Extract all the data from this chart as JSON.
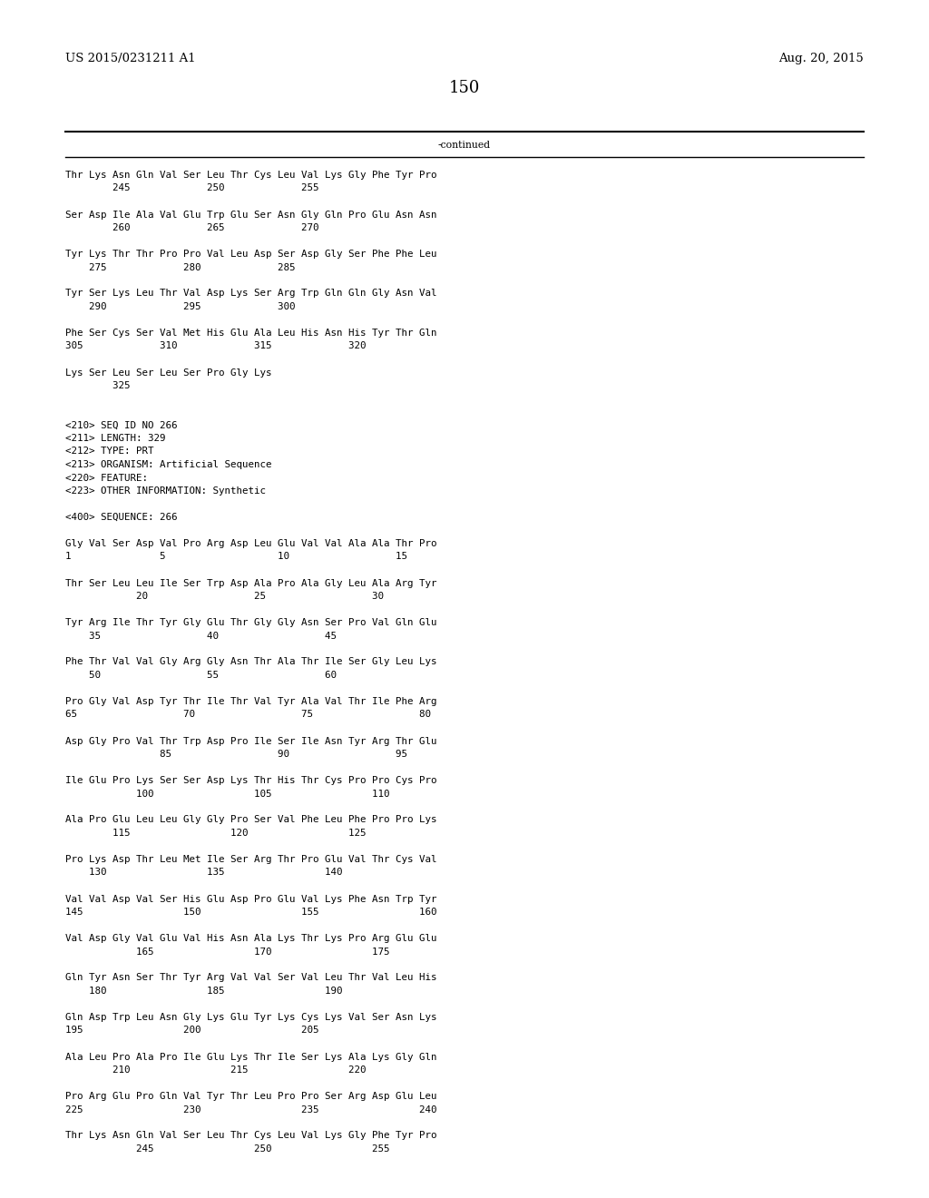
{
  "patent_number": "US 2015/0231211 A1",
  "date": "Aug. 20, 2015",
  "page_number": "150",
  "continued_label": "-continued",
  "background_color": "#ffffff",
  "text_color": "#000000",
  "font_size": 7.8,
  "header_font_size": 9.5,
  "page_num_font_size": 13,
  "lines": [
    "Thr Lys Asn Gln Val Ser Leu Thr Cys Leu Val Lys Gly Phe Tyr Pro",
    "        245             250             255",
    "",
    "Ser Asp Ile Ala Val Glu Trp Glu Ser Asn Gly Gln Pro Glu Asn Asn",
    "        260             265             270",
    "",
    "Tyr Lys Thr Thr Pro Pro Val Leu Asp Ser Asp Gly Ser Phe Phe Leu",
    "    275             280             285",
    "",
    "Tyr Ser Lys Leu Thr Val Asp Lys Ser Arg Trp Gln Gln Gly Asn Val",
    "    290             295             300",
    "",
    "Phe Ser Cys Ser Val Met His Glu Ala Leu His Asn His Tyr Thr Gln",
    "305             310             315             320",
    "",
    "Lys Ser Leu Ser Leu Ser Pro Gly Lys",
    "        325",
    "",
    "",
    "<210> SEQ ID NO 266",
    "<211> LENGTH: 329",
    "<212> TYPE: PRT",
    "<213> ORGANISM: Artificial Sequence",
    "<220> FEATURE:",
    "<223> OTHER INFORMATION: Synthetic",
    "",
    "<400> SEQUENCE: 266",
    "",
    "Gly Val Ser Asp Val Pro Arg Asp Leu Glu Val Val Ala Ala Thr Pro",
    "1               5                   10                  15",
    "",
    "Thr Ser Leu Leu Ile Ser Trp Asp Ala Pro Ala Gly Leu Ala Arg Tyr",
    "            20                  25                  30",
    "",
    "Tyr Arg Ile Thr Tyr Gly Glu Thr Gly Gly Asn Ser Pro Val Gln Glu",
    "    35                  40                  45",
    "",
    "Phe Thr Val Val Gly Arg Gly Asn Thr Ala Thr Ile Ser Gly Leu Lys",
    "    50                  55                  60",
    "",
    "Pro Gly Val Asp Tyr Thr Ile Thr Val Tyr Ala Val Thr Ile Phe Arg",
    "65                  70                  75                  80",
    "",
    "Asp Gly Pro Val Thr Trp Asp Pro Ile Ser Ile Asn Tyr Arg Thr Glu",
    "                85                  90                  95",
    "",
    "Ile Glu Pro Lys Ser Ser Asp Lys Thr His Thr Cys Pro Pro Cys Pro",
    "            100                 105                 110",
    "",
    "Ala Pro Glu Leu Leu Gly Gly Pro Ser Val Phe Leu Phe Pro Pro Lys",
    "        115                 120                 125",
    "",
    "Pro Lys Asp Thr Leu Met Ile Ser Arg Thr Pro Glu Val Thr Cys Val",
    "    130                 135                 140",
    "",
    "Val Val Asp Val Ser His Glu Asp Pro Glu Val Lys Phe Asn Trp Tyr",
    "145                 150                 155                 160",
    "",
    "Val Asp Gly Val Glu Val His Asn Ala Lys Thr Lys Pro Arg Glu Glu",
    "            165                 170                 175",
    "",
    "Gln Tyr Asn Ser Thr Tyr Arg Val Val Ser Val Leu Thr Val Leu His",
    "    180                 185                 190",
    "",
    "Gln Asp Trp Leu Asn Gly Lys Glu Tyr Lys Cys Lys Val Ser Asn Lys",
    "195                 200                 205",
    "",
    "Ala Leu Pro Ala Pro Ile Glu Lys Thr Ile Ser Lys Ala Lys Gly Gln",
    "        210                 215                 220",
    "",
    "Pro Arg Glu Pro Gln Val Tyr Thr Leu Pro Pro Ser Arg Asp Glu Leu",
    "225                 230                 235                 240",
    "",
    "Thr Lys Asn Gln Val Ser Leu Thr Cys Leu Val Lys Gly Phe Tyr Pro",
    "            245                 250                 255"
  ]
}
